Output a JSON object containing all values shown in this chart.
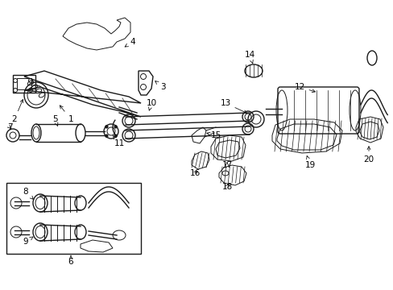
{
  "background_color": "#ffffff",
  "line_color": "#1a1a1a",
  "label_color": "#000000",
  "fig_width": 4.89,
  "fig_height": 3.6,
  "dpi": 100,
  "xlim": [
    0,
    489
  ],
  "ylim": [
    0,
    360
  ]
}
